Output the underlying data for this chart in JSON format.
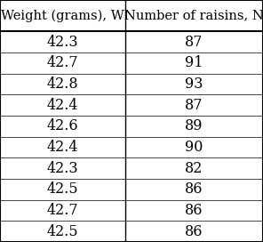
{
  "col1_header": "Weight (grams), W",
  "col2_header": "Number of raisins, N",
  "col1_data": [
    "42.3",
    "42.7",
    "42.8",
    "42.4",
    "42.6",
    "42.4",
    "42.3",
    "42.5",
    "42.7",
    "42.5"
  ],
  "col2_data": [
    "87",
    "91",
    "93",
    "87",
    "89",
    "90",
    "82",
    "86",
    "86",
    "86"
  ],
  "bg_color": "#ffffff",
  "border_color": "#000000",
  "header_fontsize": 10.5,
  "data_fontsize": 11.5,
  "col_split": 0.475,
  "figwidth": 2.96,
  "figheight": 2.72,
  "dpi": 100
}
